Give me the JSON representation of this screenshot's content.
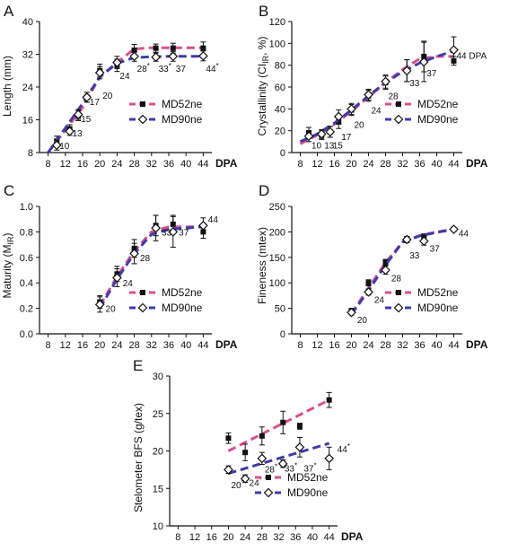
{
  "colors": {
    "md52": "#d94f8e",
    "md90": "#3e3ba6",
    "axis": "#111111",
    "marker": "#111111"
  },
  "x_axis": {
    "label": "DPA",
    "ticks": [
      8,
      12,
      16,
      20,
      24,
      28,
      32,
      36,
      40,
      44
    ],
    "range": [
      6,
      46
    ]
  },
  "legend": {
    "md52": "MD52ne",
    "md90": "MD90ne"
  },
  "chart_data": [
    {
      "panel": "A",
      "type": "line",
      "ylabel": "Length (mm)",
      "ylim": [
        8,
        40
      ],
      "yticks": [
        8,
        16,
        24,
        32,
        40
      ],
      "x_min": 8,
      "x_max": 44,
      "legend_position": "right",
      "series": [
        {
          "name": "MD52ne",
          "x": [
            10,
            13,
            15,
            17,
            20,
            24,
            28,
            33,
            37,
            44
          ],
          "y": [
            10.8,
            13.8,
            17,
            21.5,
            28,
            29.3,
            33,
            33.5,
            33.5,
            33.5
          ],
          "err": [
            1.2,
            1,
            1.2,
            1.2,
            1.6,
            1.5,
            1.4,
            1,
            1.2,
            1.5
          ],
          "fit_x": [
            8,
            16,
            20,
            24,
            28,
            32,
            36,
            40,
            44
          ],
          "fit_y": [
            8,
            19,
            26.5,
            30,
            33.3,
            33.6,
            33.6,
            33.6,
            33.6
          ]
        },
        {
          "name": "MD90ne",
          "x": [
            10,
            13,
            15,
            17,
            20,
            24,
            28,
            33,
            37,
            44
          ],
          "y": [
            9.8,
            13.2,
            17.3,
            21.5,
            27.5,
            30,
            31.5,
            31.3,
            31.5,
            31.6
          ],
          "err": [
            1.2,
            1,
            1.2,
            1.2,
            1.5,
            1.5,
            1.2,
            1,
            1.2,
            1.2
          ],
          "fit_x": [
            8,
            16,
            20,
            24,
            28,
            32,
            36,
            40,
            44
          ],
          "fit_y": [
            8,
            20,
            26.5,
            29.8,
            31.2,
            31.4,
            31.5,
            31.5,
            31.5
          ]
        }
      ],
      "point_labels": [
        {
          "t": "10",
          "x": 10,
          "y": 9.8
        },
        {
          "t": "13",
          "x": 13,
          "y": 12.8
        },
        {
          "t": "15",
          "x": 15,
          "y": 16.3
        },
        {
          "t": "17",
          "x": 17,
          "y": 20.5
        },
        {
          "t": "20",
          "x": 20,
          "y": 22
        },
        {
          "t": "24",
          "x": 24,
          "y": 26.8
        },
        {
          "t": "28",
          "x": 28,
          "y": 28.6,
          "star": true
        },
        {
          "t": "33",
          "x": 33,
          "y": 28.6,
          "star": true
        },
        {
          "t": "37",
          "x": 37,
          "y": 28.6
        },
        {
          "t": "44",
          "x": 44,
          "y": 28.6,
          "star": true
        }
      ]
    },
    {
      "panel": "B",
      "type": "line",
      "ylabel": "Crystallinity (CI",
      "ylabel_sub": "IR",
      "ylabel_tail": ", %)",
      "ylim": [
        0,
        120
      ],
      "yticks": [
        0,
        20,
        40,
        60,
        80,
        100,
        120
      ],
      "x_min": 8,
      "x_max": 44,
      "legend_position": "right",
      "series": [
        {
          "name": "MD52ne",
          "x": [
            10,
            13,
            15,
            17,
            20,
            24,
            28,
            33,
            37,
            44
          ],
          "y": [
            18,
            16,
            19,
            28,
            39,
            52,
            64,
            75,
            88,
            84
          ],
          "err": [
            5,
            4,
            5,
            6,
            5,
            5,
            6,
            10,
            14,
            4
          ],
          "fit_x": [
            8,
            12,
            16,
            20,
            24,
            28,
            32,
            36,
            40,
            44
          ],
          "fit_y": [
            8,
            16,
            26,
            38,
            51,
            64,
            76,
            86,
            88,
            88
          ]
        },
        {
          "name": "MD90ne",
          "x": [
            10,
            13,
            15,
            17,
            20,
            24,
            28,
            33,
            37,
            44
          ],
          "y": [
            15,
            17,
            19,
            33,
            40,
            53,
            65,
            75,
            83,
            94
          ],
          "err": [
            5,
            4,
            5,
            6,
            5,
            5,
            6,
            10,
            18,
            12
          ],
          "fit_x": [
            8,
            12,
            16,
            20,
            24,
            28,
            32,
            36,
            40,
            44
          ],
          "fit_y": [
            10,
            17,
            27,
            39,
            52,
            64,
            74,
            82,
            88,
            93
          ]
        }
      ],
      "point_labels": [
        {
          "t": "10",
          "x": 10,
          "y": 7
        },
        {
          "t": "13",
          "x": 13,
          "y": 7
        },
        {
          "t": "15",
          "x": 15,
          "y": 7
        },
        {
          "t": "17",
          "x": 17,
          "y": 15
        },
        {
          "t": "20",
          "x": 20,
          "y": 26
        },
        {
          "t": "24",
          "x": 24,
          "y": 39
        },
        {
          "t": "28",
          "x": 28,
          "y": 52
        },
        {
          "t": "33",
          "x": 33,
          "y": 64
        },
        {
          "t": "37",
          "x": 37,
          "y": 73
        },
        {
          "t": "44 DPA",
          "x": 44,
          "y": 89
        }
      ]
    },
    {
      "panel": "C",
      "type": "line",
      "ylabel": "Maturity (M",
      "ylabel_sub": "IR",
      "ylabel_tail": ")",
      "ylim": [
        0,
        1
      ],
      "yticks": [
        0,
        0.2,
        0.4,
        0.6,
        0.8,
        1.0
      ],
      "x_min": 20,
      "x_max": 44,
      "legend_position": "bottom-right",
      "series": [
        {
          "name": "MD52ne",
          "x": [
            20,
            24,
            28,
            33,
            37,
            44
          ],
          "y": [
            0.25,
            0.47,
            0.67,
            0.85,
            0.86,
            0.8
          ],
          "err": [
            0.05,
            0.06,
            0.07,
            0.08,
            0.07,
            0.05
          ],
          "fit_x": [
            20,
            24,
            28,
            32,
            36,
            40,
            44
          ],
          "fit_y": [
            0.22,
            0.45,
            0.65,
            0.8,
            0.84,
            0.84,
            0.84
          ]
        },
        {
          "name": "MD90ne",
          "x": [
            20,
            24,
            28,
            33,
            37,
            44
          ],
          "y": [
            0.23,
            0.44,
            0.63,
            0.83,
            0.8,
            0.85
          ],
          "err": [
            0.06,
            0.07,
            0.08,
            0.1,
            0.12,
            0.06
          ],
          "fit_x": [
            20,
            24,
            28,
            32,
            36,
            40,
            44
          ],
          "fit_y": [
            0.2,
            0.43,
            0.63,
            0.78,
            0.82,
            0.83,
            0.84
          ]
        }
      ],
      "point_labels": [
        {
          "t": "20",
          "x": 20.7,
          "y": 0.2
        },
        {
          "t": "24",
          "x": 24.7,
          "y": 0.4
        },
        {
          "t": "28",
          "x": 28.7,
          "y": 0.6
        },
        {
          "t": "33",
          "x": 33.7,
          "y": 0.8
        },
        {
          "t": "37",
          "x": 37.7,
          "y": 0.8
        },
        {
          "t": "44",
          "x": 44.5,
          "y": 0.9
        }
      ]
    },
    {
      "panel": "D",
      "type": "line",
      "ylabel": "Fineness (mtex)",
      "ylim": [
        0,
        250
      ],
      "yticks": [
        0,
        50,
        100,
        150,
        200,
        250
      ],
      "x_min": 20,
      "x_max": 44,
      "legend_position": "bottom-right",
      "series": [
        {
          "name": "MD52ne",
          "x": [
            20,
            24,
            28,
            33,
            37,
            44
          ],
          "y": [
            45,
            100,
            140,
            185,
            190,
            205
          ],
          "err": [
            5,
            6,
            6,
            6,
            6,
            4
          ],
          "fit_x": [
            20,
            24,
            28,
            32,
            36,
            40,
            44
          ],
          "fit_y": [
            40,
            90,
            140,
            180,
            193,
            200,
            205
          ]
        },
        {
          "name": "MD90ne",
          "x": [
            20,
            24,
            28,
            33,
            37,
            44
          ],
          "y": [
            42,
            82,
            125,
            185,
            182,
            205
          ],
          "err": [
            5,
            6,
            8,
            6,
            8,
            4
          ],
          "fit_x": [
            20,
            24,
            28,
            32,
            36,
            40,
            44
          ],
          "fit_y": [
            38,
            85,
            135,
            180,
            192,
            199,
            205
          ]
        }
      ],
      "point_labels": [
        {
          "t": "20",
          "x": 20.7,
          "y": 28
        },
        {
          "t": "24",
          "x": 24.7,
          "y": 68
        },
        {
          "t": "28",
          "x": 28.7,
          "y": 110
        },
        {
          "t": "33",
          "x": 33,
          "y": 155
        },
        {
          "t": "37",
          "x": 37.7,
          "y": 168
        },
        {
          "t": "44",
          "x": 44.5,
          "y": 198
        }
      ]
    },
    {
      "panel": "E",
      "type": "line",
      "ylabel": "Stelometer BFS (g/tex)",
      "ylim": [
        10,
        30
      ],
      "yticks": [
        10,
        15,
        20,
        25,
        30
      ],
      "x_min": 20,
      "x_max": 44,
      "legend_position": "bottom-right",
      "series": [
        {
          "name": "MD52ne",
          "x": [
            20,
            24,
            28,
            33,
            37,
            44
          ],
          "y": [
            21.7,
            19.8,
            22,
            23.8,
            23.3,
            26.8
          ],
          "err": [
            0.7,
            1.1,
            1.2,
            1.5,
            0.4,
            1
          ],
          "fit_x": [
            20,
            44
          ],
          "fit_y": [
            20,
            26.8
          ]
        },
        {
          "name": "MD90ne",
          "x": [
            20,
            24,
            28,
            33,
            37,
            44
          ],
          "y": [
            17.5,
            16.3,
            19,
            18.3,
            20.5,
            19
          ],
          "err": [
            0.5,
            0.5,
            0.8,
            0.5,
            1.3,
            1.5
          ],
          "fit_x": [
            20,
            44
          ],
          "fit_y": [
            17,
            21
          ]
        }
      ],
      "point_labels": [
        {
          "t": "20",
          "x": 20,
          "y": 15.5,
          "star": true
        },
        {
          "t": "24",
          "x": 24.3,
          "y": 15.8,
          "star": true
        },
        {
          "t": "28",
          "x": 28,
          "y": 17.6,
          "star": true
        },
        {
          "t": "33",
          "x": 32.7,
          "y": 17.7,
          "star": true
        },
        {
          "t": "37",
          "x": 37.3,
          "y": 17.7,
          "star": true
        },
        {
          "t": "44",
          "x": 45.3,
          "y": 20.3,
          "star": true
        }
      ]
    }
  ]
}
